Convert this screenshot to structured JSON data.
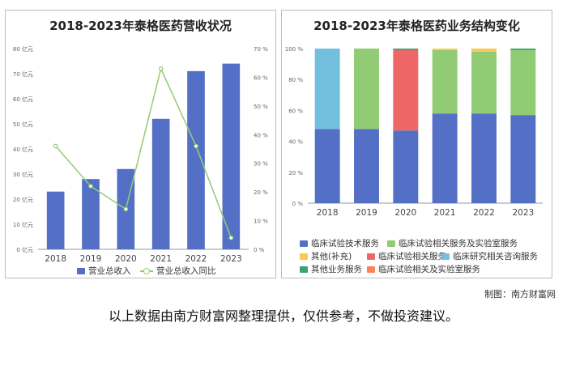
{
  "charts": {
    "left": {
      "title": "2018-2023年泰格医药营收状况"
    },
    "right": {
      "title": "2018-2023年泰格医药业务结构变化"
    }
  },
  "chart_data": [
    {
      "type": "bar",
      "title": "2018-2023年泰格医药营收状况",
      "categories": [
        "2018",
        "2019",
        "2020",
        "2021",
        "2022",
        "2023"
      ],
      "y_left_ticks": [
        "0 亿元",
        "10 亿元",
        "20 亿元",
        "30 亿元",
        "40 亿元",
        "50 亿元",
        "60 亿元",
        "70 亿元",
        "80 亿元"
      ],
      "y_right_ticks": [
        "0 %",
        "10 %",
        "20 %",
        "30 %",
        "40 %",
        "50 %",
        "60 %",
        "70 %"
      ],
      "ylim_left": [
        0,
        80
      ],
      "ylim_right": [
        0,
        70
      ],
      "grid": false,
      "legend_position": "bottom",
      "series": [
        {
          "name": "营业总收入",
          "kind": "bar",
          "axis": "left",
          "color": "#5470c6",
          "values": [
            23,
            28,
            32,
            52,
            71,
            74
          ]
        },
        {
          "name": "营业总收入同比",
          "kind": "line",
          "axis": "right",
          "color": "#91cc75",
          "values": [
            36,
            22,
            14,
            63,
            36,
            4
          ]
        }
      ]
    },
    {
      "type": "bar",
      "stacked": true,
      "title": "2018-2023年泰格医药业务结构变化",
      "categories": [
        "2018",
        "2019",
        "2020",
        "2021",
        "2022",
        "2023"
      ],
      "y_ticks": [
        "0 %",
        "20 %",
        "40 %",
        "60 %",
        "80 %",
        "100 %"
      ],
      "ylim": [
        0,
        100
      ],
      "grid": false,
      "legend_position": "bottom",
      "series": [
        {
          "name": "临床试验技术服务",
          "color": "#5470c6",
          "values": [
            48,
            48,
            47,
            58,
            58,
            57
          ]
        },
        {
          "name": "临床试验相关服务及实验室服务",
          "color": "#91cc75",
          "values": [
            0,
            52,
            0,
            41,
            40,
            42
          ]
        },
        {
          "name": "其他(补充)",
          "color": "#fac858",
          "values": [
            0,
            0,
            0,
            1,
            2,
            0
          ]
        },
        {
          "name": "临床试验相关服务",
          "color": "#ee6666",
          "values": [
            0,
            0,
            52,
            0,
            0,
            0
          ]
        },
        {
          "name": "临床研究相关咨询服务",
          "color": "#73c0de",
          "values": [
            52,
            0,
            0,
            0,
            0,
            0
          ]
        },
        {
          "name": "其他业务服务",
          "color": "#3ba272",
          "values": [
            0,
            0,
            1,
            0,
            0,
            1
          ]
        },
        {
          "name": "临床试验相关及实验室服务",
          "color": "#fc8452",
          "values": [
            0,
            0,
            0,
            0,
            0,
            0
          ]
        }
      ]
    }
  ],
  "footer": {
    "credit": "制图：南方财富网",
    "disclaimer": "以上数据由南方财富网整理提供，仅供参考，不做投资建议。"
  }
}
